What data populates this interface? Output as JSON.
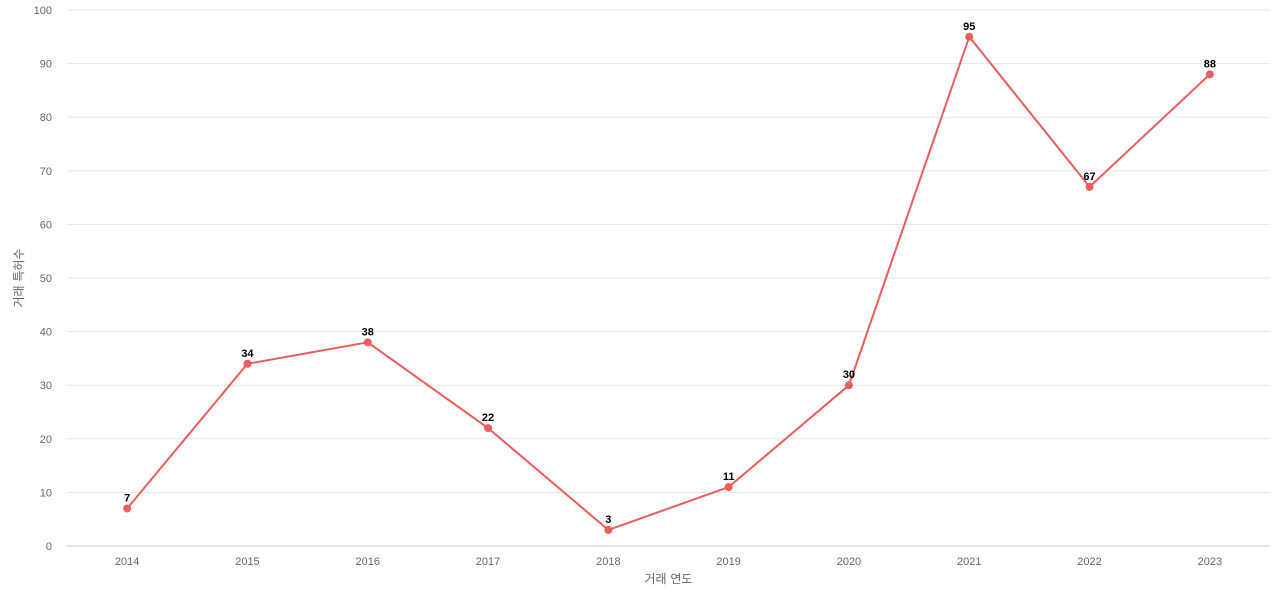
{
  "chart_data": {
    "type": "line",
    "title": "",
    "xlabel": "거래 연도",
    "ylabel": "거래 특허수",
    "categories": [
      "2014",
      "2015",
      "2016",
      "2017",
      "2018",
      "2019",
      "2020",
      "2021",
      "2022",
      "2023"
    ],
    "series": [
      {
        "values": [
          7,
          34,
          38,
          22,
          3,
          11,
          30,
          95,
          67,
          88
        ]
      }
    ],
    "ylim": [
      0,
      100
    ],
    "yticks": [
      "0",
      "10",
      "20",
      "30",
      "40",
      "50",
      "60",
      "70",
      "80",
      "90",
      "100"
    ],
    "grid": true,
    "data_labels": true,
    "colors": {
      "line": "#eb5c5c",
      "grid": "#e6e6e6",
      "axis": "#cccccc"
    }
  }
}
